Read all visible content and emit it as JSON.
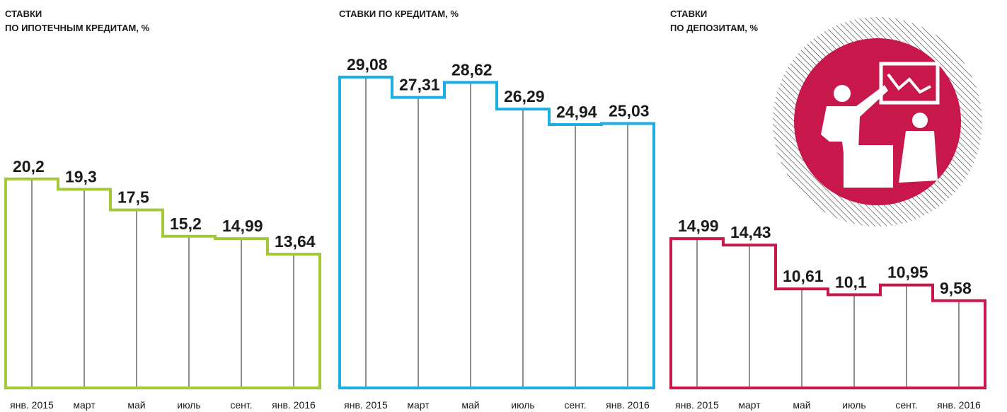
{
  "chart_data": [
    {
      "type": "step",
      "title": [
        "СТАВКИ",
        "ПО ИПОТЕЧНЫМ КРЕДИТАМ, %"
      ],
      "color": "#a3c83a",
      "categories": [
        "янв. 2015",
        "март",
        "май",
        "июль",
        "сент.",
        "янв. 2016"
      ],
      "values": [
        20.2,
        19.3,
        17.5,
        15.2,
        14.99,
        13.64
      ],
      "value_labels": [
        "20,2",
        "19,3",
        "17,5",
        "15,2",
        "14,99",
        "13,64"
      ]
    },
    {
      "type": "step",
      "title": [
        "СТАВКИ ПО КРЕДИТАМ, %"
      ],
      "color": "#1aaee5",
      "categories": [
        "янв. 2015",
        "март",
        "май",
        "июль",
        "сент.",
        "янв. 2016"
      ],
      "values": [
        29.08,
        27.31,
        28.62,
        26.29,
        24.94,
        25.03
      ],
      "value_labels": [
        "29,08",
        "27,31",
        "28,62",
        "26,29",
        "24,94",
        "25,03"
      ]
    },
    {
      "type": "step",
      "title": [
        "СТАВКИ",
        "ПО ДЕПОЗИТАМ, %"
      ],
      "color": "#c8174a",
      "categories": [
        "янв. 2015",
        "март",
        "май",
        "июль",
        "сент.",
        "янв. 2016"
      ],
      "values": [
        14.99,
        14.43,
        10.61,
        10.1,
        10.95,
        9.58
      ],
      "value_labels": [
        "14,99",
        "14,43",
        "10,61",
        "10,1",
        "10,95",
        "9,58"
      ]
    }
  ]
}
